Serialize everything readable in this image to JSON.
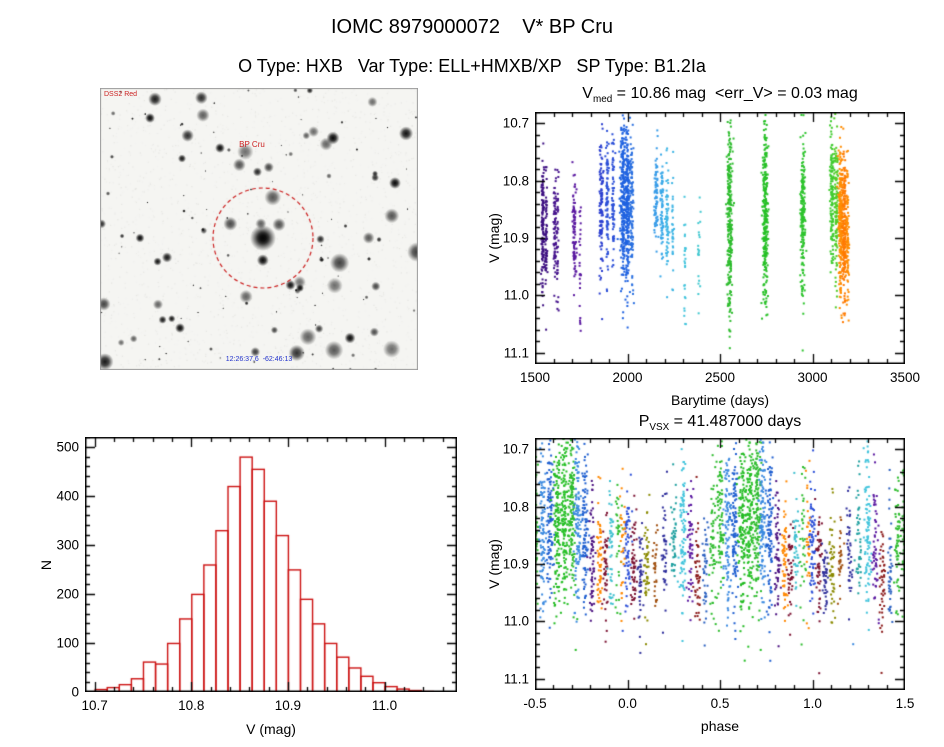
{
  "header": {
    "title": "IOMC 8979000072    V* BP Cru",
    "subtitle": "O Type: HXB   Var Type: ELL+HMXB/XP   SP Type: B1.2Ia"
  },
  "finding_chart": {
    "corner_label": "DSS2 Red",
    "center_label": "BP Cru",
    "bottom_label": "12:26:37.6  -62:46:13",
    "circle_color": "#cc2222",
    "seed": 11
  },
  "chart_data": [
    {
      "type": "scatter",
      "title_segments": [
        {
          "t": "V"
        },
        {
          "t": "med",
          "sub": true
        },
        {
          "t": " = 10.86 mag  <err_V> = 0.03 mag"
        }
      ],
      "xlabel": "Barytime (days)",
      "ylabel": "V (mag)",
      "xlim": [
        1500,
        3500
      ],
      "ylim": [
        10.68,
        11.12
      ],
      "xticks": [
        {
          "v": 1500,
          "t": "1500"
        },
        {
          "v": 2000,
          "t": "2000"
        },
        {
          "v": 2500,
          "t": "2500"
        },
        {
          "v": 3000,
          "t": "3000"
        },
        {
          "v": 3500,
          "t": "3500"
        }
      ],
      "yticks": [
        {
          "v": 10.7,
          "t": "10.7"
        },
        {
          "v": 10.8,
          "t": "10.8"
        },
        {
          "v": 10.9,
          "t": "10.9"
        },
        {
          "v": 11.0,
          "t": "11.0"
        },
        {
          "v": 11.1,
          "t": "11.1"
        }
      ],
      "minor_div": {
        "x": 5,
        "y": 5
      },
      "clusters": [
        {
          "x": 1542,
          "xs": 4,
          "y": 10.885,
          "ys": 0.055,
          "n": 130,
          "c": "#3c0e80"
        },
        {
          "x": 1560,
          "xs": 3,
          "y": 10.9,
          "ys": 0.05,
          "n": 60,
          "c": "#3c0e80"
        },
        {
          "x": 1608,
          "xs": 4,
          "y": 10.89,
          "ys": 0.05,
          "n": 70,
          "c": "#45128c"
        },
        {
          "x": 1622,
          "xs": 3,
          "y": 10.92,
          "ys": 0.06,
          "n": 40,
          "c": "#45128c"
        },
        {
          "x": 1712,
          "xs": 5,
          "y": 10.885,
          "ys": 0.045,
          "n": 90,
          "c": "#5a18a0"
        },
        {
          "x": 1745,
          "xs": 3,
          "y": 10.93,
          "ys": 0.07,
          "n": 25,
          "c": "#5a18a0"
        },
        {
          "x": 1858,
          "xs": 5,
          "y": 10.85,
          "ys": 0.06,
          "n": 110,
          "c": "#2b3fd0"
        },
        {
          "x": 1890,
          "xs": 4,
          "y": 10.83,
          "ys": 0.055,
          "n": 90,
          "c": "#2b4fd8"
        },
        {
          "x": 1922,
          "xs": 4,
          "y": 10.84,
          "ys": 0.05,
          "n": 70,
          "c": "#2b4fd8"
        },
        {
          "x": 1975,
          "xs": 8,
          "y": 10.83,
          "ys": 0.075,
          "n": 260,
          "c": "#1f62e0"
        },
        {
          "x": 2000,
          "xs": 6,
          "y": 10.84,
          "ys": 0.08,
          "n": 200,
          "c": "#1f62e0"
        },
        {
          "x": 2022,
          "xs": 5,
          "y": 10.86,
          "ys": 0.07,
          "n": 120,
          "c": "#2a70e0"
        },
        {
          "x": 2155,
          "xs": 5,
          "y": 10.83,
          "ys": 0.04,
          "n": 80,
          "c": "#389ce8"
        },
        {
          "x": 2185,
          "xs": 4,
          "y": 10.845,
          "ys": 0.045,
          "n": 70,
          "c": "#38a8e8"
        },
        {
          "x": 2215,
          "xs": 4,
          "y": 10.86,
          "ys": 0.05,
          "n": 60,
          "c": "#3cb4e4"
        },
        {
          "x": 2245,
          "xs": 3,
          "y": 10.87,
          "ys": 0.04,
          "n": 30,
          "c": "#3cb4e4"
        },
        {
          "x": 2310,
          "xs": 4,
          "y": 10.93,
          "ys": 0.06,
          "n": 25,
          "c": "#42c4dc"
        },
        {
          "x": 2385,
          "xs": 4,
          "y": 10.92,
          "ys": 0.07,
          "n": 20,
          "c": "#42c8d0"
        },
        {
          "x": 2552,
          "xs": 7,
          "y": 10.865,
          "ys": 0.085,
          "n": 280,
          "c": "#2ebc2e"
        },
        {
          "x": 2745,
          "xs": 7,
          "y": 10.86,
          "ys": 0.08,
          "n": 280,
          "c": "#26c026"
        },
        {
          "x": 2948,
          "xs": 6,
          "y": 10.865,
          "ys": 0.075,
          "n": 200,
          "c": "#2ec42e"
        },
        {
          "x": 3105,
          "xs": 6,
          "y": 10.82,
          "ys": 0.06,
          "n": 130,
          "c": "#40cc30"
        },
        {
          "x": 3128,
          "xs": 5,
          "y": 10.84,
          "ys": 0.07,
          "n": 110,
          "c": "#52cc28"
        },
        {
          "x": 3152,
          "xs": 6,
          "y": 10.875,
          "ys": 0.065,
          "n": 240,
          "c": "#ff8c00"
        },
        {
          "x": 3172,
          "xs": 5,
          "y": 10.885,
          "ys": 0.06,
          "n": 180,
          "c": "#ff7a00"
        },
        {
          "x": 3190,
          "xs": 4,
          "y": 10.9,
          "ys": 0.055,
          "n": 90,
          "c": "#ff8c00"
        }
      ],
      "extra_points": [
        {
          "x": 1560,
          "y": 11.06,
          "c": "#3c0e80"
        },
        {
          "x": 1745,
          "y": 11.05,
          "c": "#5a18a0"
        },
        {
          "x": 2312,
          "y": 11.05,
          "c": "#42c4dc"
        },
        {
          "x": 2550,
          "y": 11.06,
          "c": "#2ebc2e"
        },
        {
          "x": 1975,
          "y": 11.04,
          "c": "#1f62e0"
        }
      ]
    },
    {
      "type": "histogram",
      "xlabel": "V (mag)",
      "ylabel": "N",
      "xlim": [
        10.69,
        11.075
      ],
      "ylim": [
        520,
        0
      ],
      "xticks": [
        {
          "v": 10.7,
          "t": "10.7"
        },
        {
          "v": 10.8,
          "t": "10.8"
        },
        {
          "v": 10.9,
          "t": "10.9"
        },
        {
          "v": 11.0,
          "t": "11.0"
        }
      ],
      "yticks": [
        {
          "v": 0,
          "t": "0"
        },
        {
          "v": 100,
          "t": "100"
        },
        {
          "v": 200,
          "t": "200"
        },
        {
          "v": 300,
          "t": "300"
        },
        {
          "v": 400,
          "t": "400"
        },
        {
          "v": 500,
          "t": "500"
        }
      ],
      "minor_div": {
        "x": 5,
        "y": 5
      },
      "bins_start": 10.7,
      "bin_width": 0.0125,
      "values": [
        6,
        10,
        16,
        28,
        62,
        58,
        100,
        150,
        200,
        260,
        330,
        420,
        480,
        455,
        390,
        320,
        250,
        190,
        140,
        100,
        72,
        50,
        33,
        20,
        12,
        7,
        4,
        2
      ],
      "bar_color": "#cc1111"
    },
    {
      "type": "scatter",
      "title_segments": [
        {
          "t": "P"
        },
        {
          "t": "VSX",
          "sub": true
        },
        {
          "t": " = 41.487000 days"
        }
      ],
      "xlabel": "phase",
      "ylabel": "V (mag)",
      "xlim": [
        -0.5,
        1.5
      ],
      "ylim": [
        10.68,
        11.12
      ],
      "xticks": [
        {
          "v": -0.5,
          "t": "-0.5"
        },
        {
          "v": 0.0,
          "t": "0.0"
        },
        {
          "v": 0.5,
          "t": "0.5"
        },
        {
          "v": 1.0,
          "t": "1.0"
        },
        {
          "v": 1.5,
          "t": "1.5"
        }
      ],
      "yticks": [
        {
          "v": 10.7,
          "t": "10.7"
        },
        {
          "v": 10.8,
          "t": "10.8"
        },
        {
          "v": 10.9,
          "t": "10.9"
        },
        {
          "v": 11.0,
          "t": "11.0"
        },
        {
          "v": 11.1,
          "t": "11.1"
        }
      ],
      "minor_div": {
        "x": 5,
        "y": 5
      },
      "phase_duplicate": true,
      "clusters": [
        {
          "x": 0.0,
          "xs": 0.008,
          "y": 10.87,
          "ys": 0.055,
          "n": 70,
          "c": "#2b4fd8"
        },
        {
          "x": 0.035,
          "xs": 0.008,
          "y": 10.9,
          "ys": 0.05,
          "n": 55,
          "c": "#7a1030"
        },
        {
          "x": 0.07,
          "xs": 0.007,
          "y": 10.92,
          "ys": 0.045,
          "n": 45,
          "c": "#30309a"
        },
        {
          "x": 0.105,
          "xs": 0.008,
          "y": 10.915,
          "ys": 0.05,
          "n": 50,
          "c": "#8a8a00"
        },
        {
          "x": 0.15,
          "xs": 0.007,
          "y": 10.9,
          "ys": 0.04,
          "n": 30,
          "c": "#a05010"
        },
        {
          "x": 0.2,
          "xs": 0.008,
          "y": 10.88,
          "ys": 0.05,
          "n": 40,
          "c": "#2a2a9a"
        },
        {
          "x": 0.25,
          "xs": 0.008,
          "y": 10.86,
          "ys": 0.05,
          "n": 45,
          "c": "#20a0a0"
        },
        {
          "x": 0.3,
          "xs": 0.009,
          "y": 10.85,
          "ys": 0.07,
          "n": 90,
          "c": "#42c4dc"
        },
        {
          "x": 0.34,
          "xs": 0.008,
          "y": 10.88,
          "ys": 0.06,
          "n": 55,
          "c": "#5a18a0"
        },
        {
          "x": 0.38,
          "xs": 0.008,
          "y": 10.92,
          "ys": 0.055,
          "n": 45,
          "c": "#8b1a1a"
        },
        {
          "x": 0.42,
          "xs": 0.007,
          "y": 10.9,
          "ys": 0.05,
          "n": 40,
          "c": "#2a60c0"
        },
        {
          "x": 0.46,
          "xs": 0.008,
          "y": 10.86,
          "ys": 0.06,
          "n": 55,
          "c": "#2ebc2e"
        },
        {
          "x": 0.5,
          "xs": 0.009,
          "y": 10.84,
          "ys": 0.075,
          "n": 90,
          "c": "#2ebc2e"
        },
        {
          "x": 0.54,
          "xs": 0.009,
          "y": 10.84,
          "ys": 0.07,
          "n": 95,
          "c": "#3b8ae0"
        },
        {
          "x": 0.58,
          "xs": 0.009,
          "y": 10.83,
          "ys": 0.075,
          "n": 110,
          "c": "#1f5fd0"
        },
        {
          "x": 0.62,
          "xs": 0.01,
          "y": 10.82,
          "ys": 0.08,
          "n": 140,
          "c": "#22bb22"
        },
        {
          "x": 0.66,
          "xs": 0.01,
          "y": 10.81,
          "ys": 0.08,
          "n": 150,
          "c": "#28c028"
        },
        {
          "x": 0.7,
          "xs": 0.01,
          "y": 10.8,
          "ys": 0.075,
          "n": 150,
          "c": "#2ebc2e"
        },
        {
          "x": 0.73,
          "xs": 0.009,
          "y": 10.82,
          "ys": 0.075,
          "n": 120,
          "c": "#3b8ae0"
        },
        {
          "x": 0.77,
          "xs": 0.009,
          "y": 10.84,
          "ys": 0.07,
          "n": 100,
          "c": "#1f5fd0"
        },
        {
          "x": 0.81,
          "xs": 0.008,
          "y": 10.88,
          "ys": 0.06,
          "n": 60,
          "c": "#4a1080"
        },
        {
          "x": 0.85,
          "xs": 0.008,
          "y": 10.89,
          "ys": 0.055,
          "n": 60,
          "c": "#ff8800"
        },
        {
          "x": 0.88,
          "xs": 0.007,
          "y": 10.9,
          "ys": 0.05,
          "n": 45,
          "c": "#7a1030"
        },
        {
          "x": 0.91,
          "xs": 0.007,
          "y": 10.87,
          "ys": 0.05,
          "n": 45,
          "c": "#40c0d0"
        },
        {
          "x": 0.95,
          "xs": 0.008,
          "y": 10.87,
          "ys": 0.07,
          "n": 35,
          "c": "#2ebc2e"
        },
        {
          "x": 0.975,
          "xs": 0.007,
          "y": 10.86,
          "ys": 0.06,
          "n": 30,
          "c": "#ff8800"
        }
      ],
      "extra_points": [
        {
          "x": -0.28,
          "y": 11.05,
          "c": "#22bb22"
        },
        {
          "x": 0.1,
          "y": 11.04,
          "c": "#8a8a00"
        },
        {
          "x": 0.72,
          "y": 11.05,
          "c": "#22bb22"
        },
        {
          "x": 1.22,
          "y": 11.04,
          "c": "#3b8ae0"
        }
      ]
    }
  ]
}
